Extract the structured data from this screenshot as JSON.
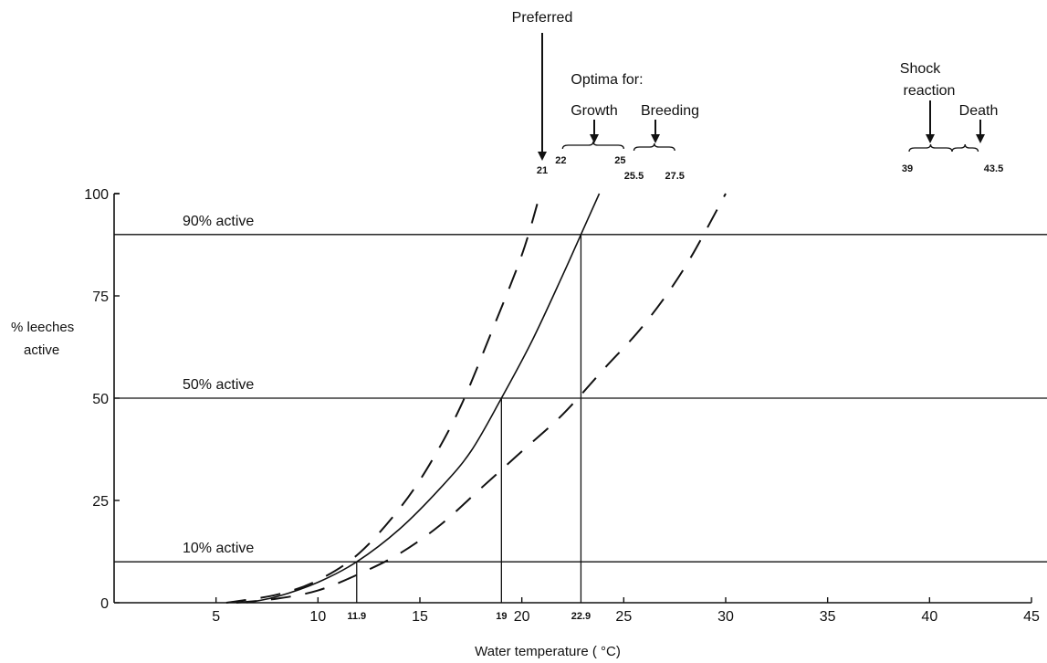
{
  "chart_data": {
    "type": "line",
    "title": "",
    "xlabel": "Water temperature ( °C)",
    "ylabel_lines": [
      "% leeches",
      "active"
    ],
    "xlim": [
      0,
      45
    ],
    "ylim": [
      0,
      100
    ],
    "x_ticks": [
      "5",
      "10",
      "15",
      "20",
      "25",
      "30",
      "35",
      "40",
      "45"
    ],
    "y_ticks": [
      "0",
      "25",
      "50",
      "75",
      "100"
    ],
    "reference_lines": [
      {
        "label": "90% active",
        "y": 90
      },
      {
        "label": "50% active",
        "y": 50
      },
      {
        "label": "10% active",
        "y": 10
      }
    ],
    "threshold_marks": [
      {
        "label": "11.9",
        "x": 11.9,
        "y": 10
      },
      {
        "label": "19",
        "x": 19,
        "y": 50
      },
      {
        "label": "22.9",
        "x": 22.9,
        "y": 90
      }
    ],
    "series": [
      {
        "style": "solid",
        "points": [
          [
            6.5,
            0
          ],
          [
            8,
            1.5
          ],
          [
            10,
            5
          ],
          [
            11.9,
            10
          ],
          [
            14,
            18
          ],
          [
            16,
            28
          ],
          [
            17.5,
            37
          ],
          [
            19,
            50
          ],
          [
            20.5,
            64
          ],
          [
            22,
            80
          ],
          [
            22.9,
            90
          ],
          [
            23.8,
            100
          ]
        ]
      },
      {
        "style": "dashed",
        "points": [
          [
            5.5,
            0
          ],
          [
            8,
            2
          ],
          [
            10,
            5.5
          ],
          [
            12,
            12
          ],
          [
            14,
            23
          ],
          [
            15.5,
            34
          ],
          [
            17,
            48
          ],
          [
            18.5,
            66
          ],
          [
            20,
            85
          ],
          [
            20.9,
            100
          ]
        ]
      },
      {
        "style": "dashed",
        "points": [
          [
            6,
            0
          ],
          [
            8,
            1
          ],
          [
            10,
            3
          ],
          [
            12,
            7
          ],
          [
            14,
            12
          ],
          [
            16,
            19
          ],
          [
            18,
            28
          ],
          [
            20,
            37
          ],
          [
            22,
            46
          ],
          [
            24,
            57
          ],
          [
            26,
            68
          ],
          [
            28,
            82
          ],
          [
            30,
            100
          ]
        ]
      }
    ],
    "annotations": {
      "preferred": {
        "label": "Preferred",
        "value_label": "21",
        "x": 21
      },
      "optima_title": "Optima for:",
      "growth": {
        "label": "Growth",
        "low_label": "22",
        "high_label": "25",
        "low": 22,
        "high": 25
      },
      "breeding": {
        "label": "Breeding",
        "low_label": "25.5",
        "high_label": "27.5",
        "low": 25.5,
        "high": 27.5
      },
      "shock": {
        "label_lines": [
          "Shock",
          "reaction"
        ],
        "low_label": "39",
        "low": 39
      },
      "death": {
        "label": "Death",
        "high_label": "43.5",
        "high": 43.5
      }
    }
  }
}
